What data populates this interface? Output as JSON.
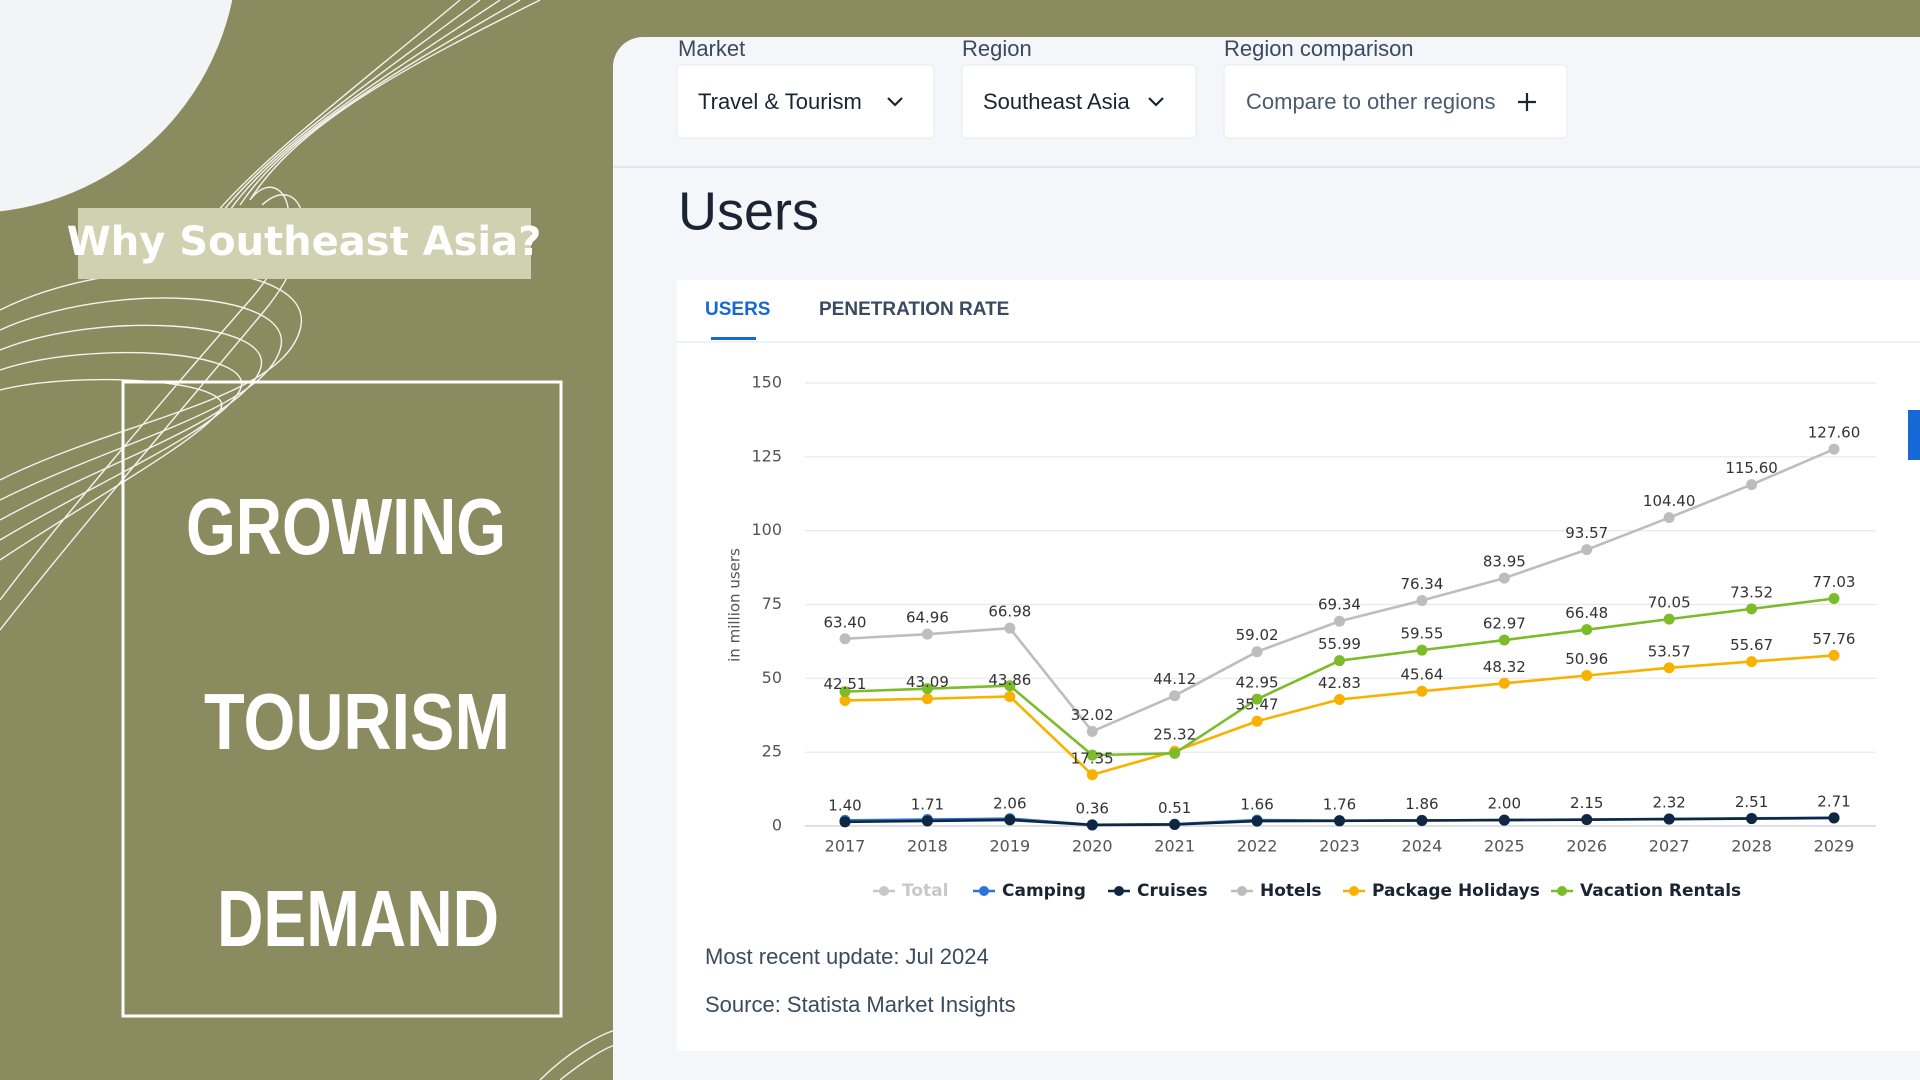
{
  "left": {
    "tag": "Why Southeast Asia?",
    "headline": [
      "GROWING",
      "TOURISM",
      "DEMAND"
    ]
  },
  "filters": [
    {
      "label": "Market",
      "value": "Travel & Tourism"
    },
    {
      "label": "Region",
      "value": "Southeast Asia"
    },
    {
      "label": "Region comparison",
      "value": "Compare to other regions"
    }
  ],
  "section_title": "Users",
  "tabs": [
    "USERS",
    "PENETRATION RATE"
  ],
  "chart_data": {
    "type": "line",
    "y_label": "in million users",
    "categories": [
      "2017",
      "2018",
      "2019",
      "2020",
      "2021",
      "2022",
      "2023",
      "2024",
      "2025",
      "2026",
      "2027",
      "2028",
      "2029"
    ],
    "ylim": [
      0,
      150
    ],
    "yticks": [
      0,
      25,
      50,
      75,
      100,
      125,
      150
    ],
    "grid": true,
    "series": [
      {
        "name": "Total",
        "color": "#c8c8c8",
        "visible": false,
        "values": [
          null,
          null,
          null,
          null,
          null,
          null,
          null,
          null,
          null,
          null,
          null,
          null,
          null
        ]
      },
      {
        "name": "Camping",
        "color": "#2a74d9",
        "values": [
          1.9,
          2.2,
          2.5,
          0.4,
          0.6,
          2.0,
          1.8,
          1.9,
          2.0,
          2.2,
          2.4,
          2.6,
          2.8
        ]
      },
      {
        "name": "Cruises",
        "color": "#0f2740",
        "values": [
          1.4,
          1.71,
          2.06,
          0.36,
          0.51,
          1.66,
          1.76,
          1.86,
          2.0,
          2.15,
          2.32,
          2.51,
          2.71
        ],
        "value_labels": [
          "1.40",
          "1.71",
          "2.06",
          "0.36",
          "0.51",
          "1.66",
          "1.76",
          "1.86",
          "2.00",
          "2.15",
          "2.32",
          "2.51",
          "2.71"
        ]
      },
      {
        "name": "Hotels",
        "color": "#bdbdbd",
        "values": [
          63.4,
          64.96,
          66.98,
          32.02,
          44.12,
          59.02,
          69.34,
          76.34,
          83.95,
          93.57,
          104.4,
          115.6,
          127.6
        ],
        "value_labels": [
          "63.40",
          "64.96",
          "66.98",
          "32.02",
          "44.12",
          "59.02",
          "69.34",
          "76.34",
          "83.95",
          "93.57",
          "104.40",
          "115.60",
          "127.60"
        ]
      },
      {
        "name": "Package Holidays",
        "color": "#f9b100",
        "values": [
          42.51,
          43.09,
          43.86,
          17.35,
          25.32,
          35.47,
          42.83,
          45.64,
          48.32,
          50.96,
          53.57,
          55.67,
          57.76
        ],
        "value_labels": [
          "42.51",
          "43.09",
          "43.86",
          "17.35",
          "25.32",
          "35.47",
          "42.83",
          "45.64",
          "48.32",
          "50.96",
          "53.57",
          "55.67",
          "57.76"
        ]
      },
      {
        "name": "Vacation Rentals",
        "color": "#7cbb2a",
        "values": [
          45.5,
          46.5,
          47.5,
          24.0,
          24.6,
          42.95,
          55.99,
          59.55,
          62.97,
          66.48,
          70.05,
          73.52,
          77.03
        ],
        "value_labels": [
          null,
          null,
          null,
          null,
          null,
          "42.95",
          "55.99",
          "59.55",
          "62.97",
          "66.48",
          "70.05",
          "73.52",
          "77.03"
        ]
      }
    ]
  },
  "footer": [
    "Most recent update: Jul 2024",
    "Source: Statista Market Insights"
  ]
}
